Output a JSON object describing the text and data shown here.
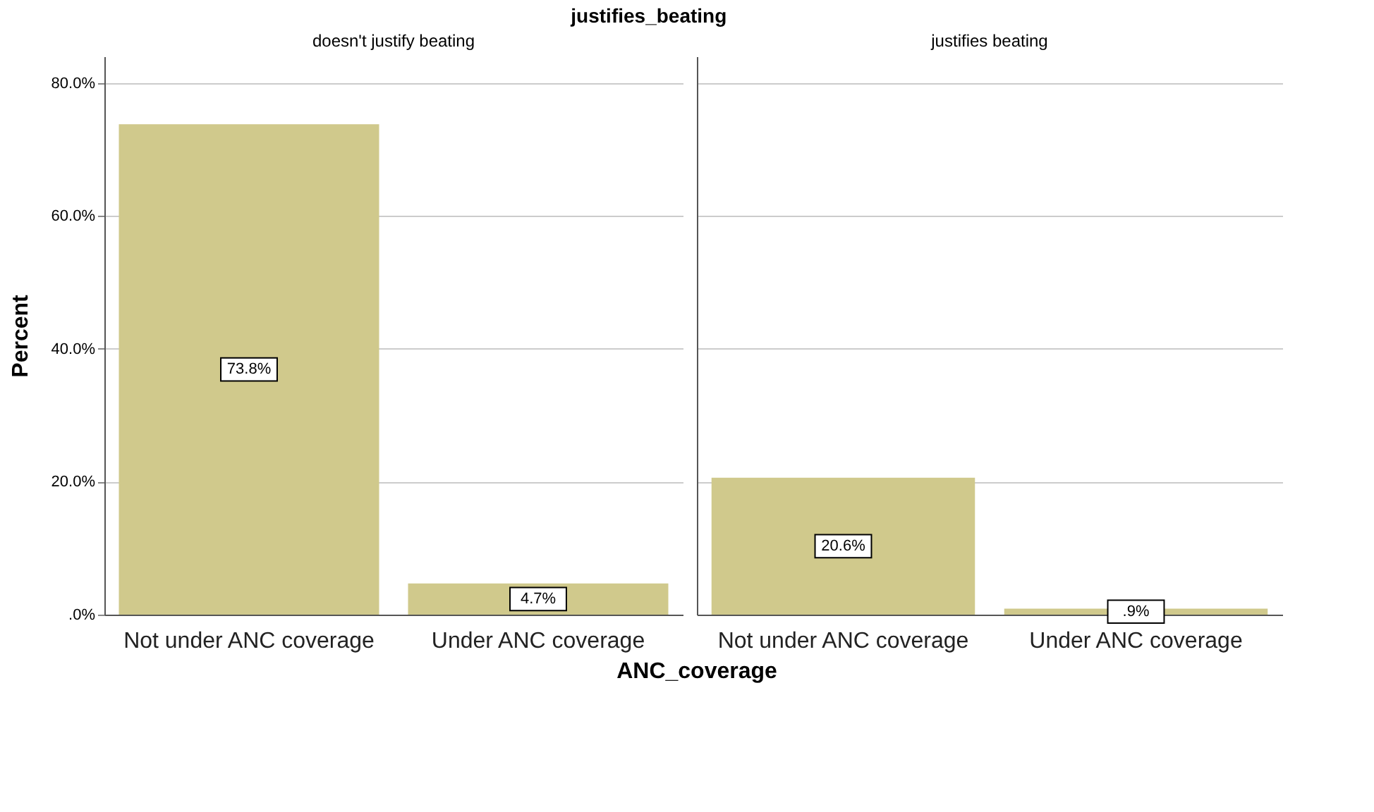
{
  "chart_data": [
    {
      "type": "bar",
      "title": "justifies_beating",
      "subtitle": "doesn't justify beating",
      "xlabel": "ANC_coverage",
      "ylabel": "Percent",
      "categories": [
        "Not under ANC coverage",
        "Under ANC coverage"
      ],
      "values": [
        73.8,
        4.7
      ],
      "value_labels": [
        "73.8%",
        "4.7%"
      ],
      "color": "#d0c98c",
      "ylim": [
        0,
        84
      ],
      "yticks": [
        {
          "value": 0,
          "label": ".0%"
        },
        {
          "value": 20,
          "label": "20.0%"
        },
        {
          "value": 40,
          "label": "40.0%"
        },
        {
          "value": 60,
          "label": "60.0%"
        },
        {
          "value": 80,
          "label": "80.0%"
        }
      ],
      "grid": "y"
    },
    {
      "type": "bar",
      "subtitle": "justifies beating",
      "categories": [
        "Not under ANC coverage",
        "Under ANC coverage"
      ],
      "values": [
        20.6,
        0.9
      ],
      "value_labels": [
        "20.6%",
        ".9%"
      ],
      "color": "#d0c98c",
      "ylim": [
        0,
        84
      ],
      "yticks": [
        {
          "value": 0,
          "label": null
        },
        {
          "value": 20,
          "label": null
        },
        {
          "value": 40,
          "label": null
        },
        {
          "value": 60,
          "label": null
        },
        {
          "value": 80,
          "label": null
        }
      ],
      "grid": "y",
      "tick_labels": "x"
    }
  ]
}
